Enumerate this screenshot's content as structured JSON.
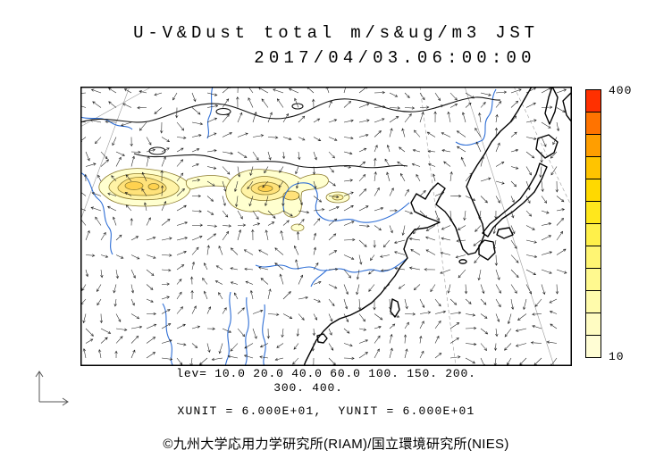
{
  "title": {
    "line1": "U-V&Dust total m/s&ug/m3 JST",
    "line2": "2017/04/03.06:00:00"
  },
  "colorbar": {
    "max_label": "400",
    "min_label": "10",
    "colors_top_to_bottom": [
      "#ff3000",
      "#ff7300",
      "#ff9e00",
      "#ffc400",
      "#ffd900",
      "#ffe71c",
      "#fff04a",
      "#fff573",
      "#fff98f",
      "#fffbab",
      "#fffcc2",
      "#fffdd4"
    ]
  },
  "captions": {
    "lev_line1": "lev= 10.0 20.0 40.0 60.0 100. 150. 200.",
    "lev_line2": "300. 400.",
    "unit_line": "XUNIT = 6.000E+01,  YUNIT = 6.000E+01"
  },
  "credit": "©九州大学応用力学研究所(RIAM)/国立環境研究所(NIES)",
  "chart_data": {
    "type": "heatmap",
    "title": "U-V&Dust total m/s&ug/m3 JST",
    "timestamp": "2017/04/03.06:00:00",
    "variables": [
      "U-V wind vectors (m/s)",
      "Dust total concentration (ug/m3)"
    ],
    "contour_levels": [
      10.0,
      20.0,
      40.0,
      60.0,
      100,
      150,
      200,
      300,
      400
    ],
    "colorbar_range": [
      10,
      400
    ],
    "xunit": "6.000E+01",
    "yunit": "6.000E+01",
    "legend_position": "right",
    "overlay": "wind vector field over East Asia map with dust contour fills"
  }
}
